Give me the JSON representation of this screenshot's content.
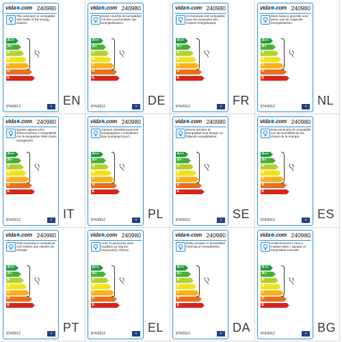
{
  "brand": {
    "prefix": "vida",
    "suffix": ".com"
  },
  "model_number": "240980",
  "regulation": "874/2012",
  "eu_flag_icon": "eu-flag-icon",
  "energy_classes": [
    {
      "label": "A++",
      "color": "#1f9a3a"
    },
    {
      "label": "A+",
      "color": "#46b035"
    },
    {
      "label": "A",
      "color": "#b5cf2f"
    },
    {
      "label": "B",
      "color": "#f2e21d"
    },
    {
      "label": "C",
      "color": "#f5b21a"
    },
    {
      "label": "D",
      "color": "#e8701c"
    },
    {
      "label": "E",
      "color": "#d8251d"
    }
  ],
  "labels": [
    {
      "lang": "EN",
      "text": "This luminaire is compatible with bulbs of the energy classes:"
    },
    {
      "lang": "DE",
      "text": "Diese Leuchte ist kompatibel mit den Leuchtmitteln der Energieklassen:"
    },
    {
      "lang": "FR",
      "text": "Ce luminaire est compatible avec les ampoules des classes énergétiques:"
    },
    {
      "lang": "NL",
      "text": "Deze lamp is geschikt voor peren van de volgende energieklassen:"
    },
    {
      "lang": "IT",
      "text": "Questo apparecchio d'illuminazione è compatibile con le lampadine delle classi energetiche:"
    },
    {
      "lang": "PL",
      "text": "Oprawa oświetleniowa jest kompatybilna z żarówkami klas energetycznych:"
    },
    {
      "lang": "SE",
      "text": "Denna armatur är kompatibel med lampor av följande energiklasser:"
    },
    {
      "lang": "ES",
      "text": "Esta luminaria es compatible con las bombillas de las clases de la energía:"
    },
    {
      "lang": "PT",
      "text": "Esta luminária é compatível com bulbos das classes de energia:"
    },
    {
      "lang": "EL",
      "text": "Αυτό το φωτιστικό είναι συμβατό με λάμπες ενεργειακής κλάσης:"
    },
    {
      "lang": "DA",
      "text": "Dette armatur er kompatibel med løg af energiklasse:"
    },
    {
      "lang": "BG",
      "text": "Осветителното тяло е съвместимо с крушки от енергийни класове:"
    }
  ]
}
